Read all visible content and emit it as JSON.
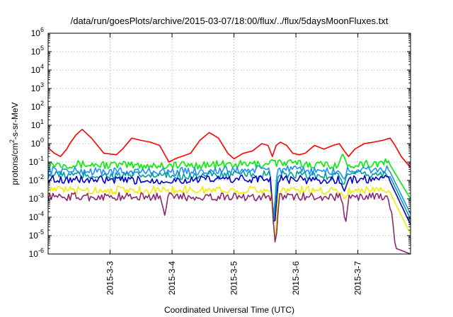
{
  "chart_data": {
    "type": "line",
    "title": "/data/run/goesPlots/archive/2015-03-07/18:00/flux/../flux/5daysMoonFluxes.txt",
    "xlabel": "Coordinated Universal Time (UTC)",
    "ylabel": "protons/cm²-s-sr-MeV",
    "ylabel_parts": [
      "protons/cm",
      "2",
      "-s-sr-MeV"
    ],
    "yscale": "log",
    "ylim_exp": [
      -6,
      6
    ],
    "y_ticks": [
      {
        "base": "10",
        "exp": "-6"
      },
      {
        "base": "10",
        "exp": "-5"
      },
      {
        "base": "10",
        "exp": "-4"
      },
      {
        "base": "10",
        "exp": "-3"
      },
      {
        "base": "10",
        "exp": "-2"
      },
      {
        "base": "10",
        "exp": "-1"
      },
      {
        "base": "10",
        "exp": "0"
      },
      {
        "base": "10",
        "exp": "1"
      },
      {
        "base": "10",
        "exp": "2"
      },
      {
        "base": "10",
        "exp": "3"
      },
      {
        "base": "10",
        "exp": "4"
      },
      {
        "base": "10",
        "exp": "5"
      },
      {
        "base": "10",
        "exp": "6"
      }
    ],
    "xlim_days": [
      2.0,
      7.85
    ],
    "x_ticks": [
      {
        "label": "2015-3-3",
        "day": 3
      },
      {
        "label": "2015-3-4",
        "day": 4
      },
      {
        "label": "2015-3-5",
        "day": 5
      },
      {
        "label": "2015-3-6",
        "day": 6
      },
      {
        "label": "2015-3-7",
        "day": 7
      }
    ],
    "grid": true,
    "legend": "none",
    "series": [
      {
        "color": "#ff0000",
        "x": [
          2.0,
          2.1,
          2.2,
          2.3,
          2.35,
          2.45,
          2.55,
          2.7,
          2.9,
          3.1,
          3.2,
          3.35,
          3.5,
          3.65,
          3.8,
          3.95,
          4.05,
          4.15,
          4.3,
          4.45,
          4.6,
          4.75,
          4.9,
          5.0,
          5.15,
          5.3,
          5.45,
          5.55,
          5.62,
          5.68,
          5.75,
          5.85,
          5.95,
          6.05,
          6.15,
          6.3,
          6.45,
          6.6,
          6.7,
          6.78,
          6.85,
          6.95,
          7.1,
          7.25,
          7.4,
          7.52,
          7.6,
          7.7,
          7.85
        ],
        "y": [
          0.6,
          0.3,
          0.2,
          0.5,
          1.0,
          3.0,
          6.0,
          2.0,
          0.3,
          0.25,
          0.5,
          2.0,
          1.5,
          1.2,
          0.8,
          0.1,
          0.15,
          0.2,
          0.3,
          1.5,
          4.0,
          2.0,
          0.3,
          0.15,
          0.3,
          0.4,
          1.0,
          0.8,
          0.2,
          0.8,
          1.2,
          0.8,
          0.3,
          0.25,
          0.3,
          0.8,
          0.5,
          0.8,
          1.0,
          0.4,
          0.2,
          0.5,
          1.0,
          1.2,
          1.5,
          2.0,
          0.8,
          0.2,
          0.05
        ]
      },
      {
        "color": "#00ee00",
        "base": [
          [
            2.0,
            0.08
          ],
          [
            2.9,
            0.07
          ],
          [
            3.6,
            0.065
          ],
          [
            4.5,
            0.07
          ],
          [
            5.4,
            0.075
          ],
          [
            5.52,
            0.08
          ],
          [
            5.7,
            0.09
          ],
          [
            6.5,
            0.07
          ],
          [
            7.5,
            0.09
          ],
          [
            7.85,
            0.001
          ]
        ],
        "dips": [
          [
            5.62,
            0.15
          ],
          [
            6.75,
            0.3
          ]
        ]
      },
      {
        "color": "#1e90ff",
        "base": [
          [
            2.0,
            0.035
          ],
          [
            3.0,
            0.03
          ],
          [
            4.0,
            0.03
          ],
          [
            5.0,
            0.035
          ],
          [
            5.52,
            0.04
          ],
          [
            5.7,
            0.04
          ],
          [
            6.5,
            0.03
          ],
          [
            7.5,
            0.04
          ],
          [
            7.85,
            0.00015
          ]
        ],
        "dips": [
          [
            5.64,
            0.0001
          ],
          [
            6.77,
            0.01
          ]
        ]
      },
      {
        "color": "#00a0a0",
        "base": [
          [
            2.0,
            0.02
          ],
          [
            3.0,
            0.018
          ],
          [
            4.0,
            0.018
          ],
          [
            5.0,
            0.02
          ],
          [
            5.52,
            0.02
          ],
          [
            5.7,
            0.02
          ],
          [
            6.5,
            0.018
          ],
          [
            7.5,
            0.022
          ],
          [
            7.85,
            8e-05
          ]
        ],
        "dips": [
          [
            5.64,
            3e-05
          ],
          [
            6.77,
            0.005
          ]
        ]
      },
      {
        "color": "#0000cd",
        "base": [
          [
            2.0,
            0.012
          ],
          [
            3.0,
            0.01
          ],
          [
            4.0,
            0.01
          ],
          [
            5.0,
            0.012
          ],
          [
            5.52,
            0.012
          ],
          [
            5.7,
            0.012
          ],
          [
            6.5,
            0.01
          ],
          [
            7.5,
            0.012
          ],
          [
            7.85,
            4e-05
          ]
        ],
        "dips": [
          [
            5.65,
            1.5e-05
          ],
          [
            6.78,
            0.0025
          ]
        ]
      },
      {
        "color": "#eeee00",
        "base": [
          [
            2.0,
            0.003
          ],
          [
            3.0,
            0.003
          ],
          [
            4.0,
            0.003
          ],
          [
            5.0,
            0.003
          ],
          [
            5.52,
            0.003
          ],
          [
            5.7,
            0.003
          ],
          [
            6.5,
            0.003
          ],
          [
            7.5,
            0.003
          ],
          [
            7.85,
            1.2e-05
          ]
        ],
        "dips": [
          [
            5.66,
            4e-06
          ],
          [
            6.79,
            0.0008
          ]
        ]
      },
      {
        "color": "#8b2a6e",
        "base": [
          [
            2.0,
            0.0013
          ],
          [
            3.0,
            0.0013
          ],
          [
            4.0,
            0.0013
          ],
          [
            5.0,
            0.0013
          ],
          [
            5.52,
            0.0013
          ],
          [
            5.7,
            0.0013
          ],
          [
            6.5,
            0.0013
          ],
          [
            7.5,
            0.0013
          ],
          [
            7.62,
            2e-06
          ],
          [
            7.85,
            1e-06
          ]
        ],
        "dips": [
          [
            3.88,
            0.00012
          ],
          [
            5.67,
            2e-06
          ],
          [
            6.8,
            4e-05
          ]
        ]
      }
    ]
  }
}
